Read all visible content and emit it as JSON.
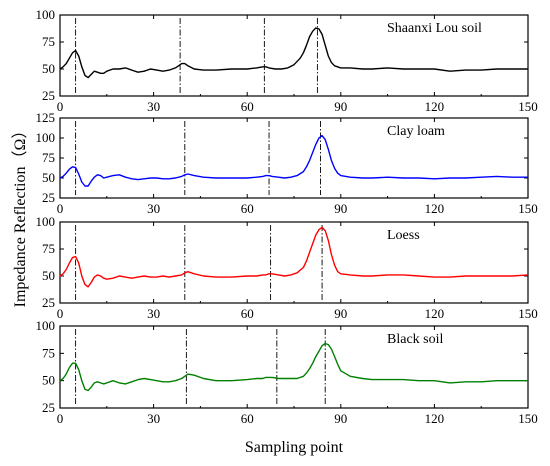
{
  "figure": {
    "ylabel": "Impedance Reflection（Ω）",
    "xlabel": "Sampling point"
  },
  "chart_data": [
    {
      "type": "line",
      "label": "Shaanxi Lou soil",
      "color": "#000000",
      "xlim": [
        0,
        150
      ],
      "ylim": [
        25,
        100
      ],
      "xticks": [
        "0",
        "30",
        "60",
        "90",
        "120",
        "150"
      ],
      "yticks": [
        "25",
        "50",
        "75",
        "100"
      ],
      "markers": [
        5,
        38.5,
        65.5,
        82.5
      ],
      "x": [
        0,
        1,
        2,
        3,
        4,
        5,
        6,
        7,
        8,
        9,
        10,
        11,
        12,
        13,
        14,
        15,
        17,
        19,
        21,
        23,
        25,
        27,
        29,
        31,
        33,
        35,
        37,
        38,
        39,
        40,
        41,
        43,
        46,
        50,
        55,
        60,
        63,
        65,
        66,
        67,
        69,
        71,
        73,
        75,
        77,
        78,
        79,
        80,
        81,
        82,
        83,
        84,
        85,
        86,
        87,
        88,
        90,
        93,
        97,
        100,
        105,
        110,
        115,
        120,
        125,
        130,
        135,
        140,
        145,
        150
      ],
      "y": [
        50,
        52,
        55,
        60,
        65,
        67,
        62,
        52,
        44,
        42,
        45,
        48,
        47,
        46,
        46,
        48,
        50,
        50,
        51,
        49,
        47,
        48,
        50,
        49,
        48,
        49,
        51,
        53,
        55,
        55,
        53,
        50,
        49,
        49,
        50,
        50,
        51,
        52,
        52,
        51,
        50,
        50,
        51,
        54,
        60,
        65,
        72,
        80,
        85,
        88,
        87,
        82,
        72,
        62,
        56,
        53,
        51,
        51,
        50,
        50,
        51,
        50,
        50,
        50,
        48,
        49,
        49,
        50,
        50,
        50
      ]
    },
    {
      "type": "line",
      "label": "Clay loam",
      "color": "#0000ff",
      "xlim": [
        0,
        150
      ],
      "ylim": [
        25,
        125
      ],
      "xticks": [
        "0",
        "30",
        "60",
        "90",
        "120",
        "150"
      ],
      "yticks": [
        "25",
        "50",
        "75",
        "100",
        "125"
      ],
      "markers": [
        5,
        40,
        67,
        83.5
      ],
      "x": [
        0,
        1,
        2,
        3,
        4,
        5,
        6,
        7,
        8,
        9,
        10,
        11,
        12,
        13,
        14,
        15,
        17,
        19,
        21,
        23,
        25,
        27,
        29,
        31,
        33,
        35,
        37,
        39,
        40,
        41,
        43,
        46,
        50,
        55,
        60,
        63,
        65,
        66,
        67,
        68,
        70,
        72,
        74,
        76,
        78,
        79,
        80,
        81,
        82,
        83,
        84,
        85,
        86,
        87,
        88,
        89,
        90,
        93,
        97,
        100,
        105,
        110,
        115,
        120,
        125,
        130,
        135,
        140,
        145,
        150
      ],
      "y": [
        50,
        52,
        56,
        61,
        64,
        63,
        55,
        45,
        40,
        40,
        46,
        51,
        54,
        53,
        50,
        51,
        53,
        54,
        51,
        49,
        48,
        49,
        50,
        50,
        49,
        49,
        50,
        52,
        54,
        55,
        53,
        51,
        50,
        50,
        50,
        51,
        52,
        53,
        53,
        52,
        51,
        50,
        51,
        53,
        58,
        64,
        72,
        82,
        92,
        100,
        103,
        98,
        86,
        72,
        62,
        56,
        53,
        51,
        50,
        50,
        51,
        50,
        50,
        49,
        50,
        50,
        51,
        52,
        51,
        51
      ]
    },
    {
      "type": "line",
      "label": "Loess",
      "color": "#ff0000",
      "xlim": [
        0,
        150
      ],
      "ylim": [
        25,
        100
      ],
      "xticks": [
        "0",
        "30",
        "60",
        "90",
        "120",
        "150"
      ],
      "yticks": [
        "25",
        "50",
        "75",
        "100"
      ],
      "markers": [
        5,
        40,
        67.5,
        84
      ],
      "x": [
        0,
        1,
        2,
        3,
        4,
        5,
        6,
        7,
        8,
        9,
        10,
        11,
        12,
        13,
        14,
        15,
        17,
        19,
        21,
        23,
        25,
        27,
        29,
        31,
        33,
        35,
        37,
        39,
        40,
        41,
        43,
        46,
        50,
        55,
        60,
        63,
        65,
        66,
        67,
        68,
        70,
        72,
        74,
        76,
        78,
        79,
        80,
        81,
        82,
        83,
        84,
        85,
        86,
        87,
        88,
        89,
        90,
        93,
        97,
        100,
        105,
        110,
        115,
        120,
        125,
        130,
        135,
        140,
        145,
        150
      ],
      "y": [
        50,
        52,
        56,
        62,
        67,
        68,
        62,
        50,
        42,
        40,
        44,
        49,
        51,
        50,
        48,
        47,
        48,
        50,
        49,
        48,
        49,
        50,
        49,
        49,
        50,
        49,
        50,
        51,
        53,
        54,
        52,
        50,
        49,
        49,
        50,
        50,
        51,
        51,
        52,
        52,
        51,
        50,
        51,
        53,
        58,
        64,
        72,
        80,
        88,
        93,
        95,
        92,
        83,
        70,
        60,
        54,
        52,
        51,
        50,
        50,
        51,
        51,
        50,
        49,
        49,
        50,
        50,
        50,
        50,
        51
      ]
    },
    {
      "type": "line",
      "label": "Black soil",
      "color": "#008000",
      "xlim": [
        0,
        150
      ],
      "ylim": [
        25,
        100
      ],
      "xticks": [
        "0",
        "30",
        "60",
        "90",
        "120",
        "150"
      ],
      "yticks": [
        "25",
        "50",
        "75",
        "100"
      ],
      "markers": [
        5,
        40.5,
        69.5,
        85
      ],
      "x": [
        0,
        1,
        2,
        3,
        4,
        5,
        6,
        7,
        8,
        9,
        10,
        11,
        12,
        13,
        14,
        15,
        17,
        19,
        21,
        23,
        25,
        27,
        29,
        31,
        33,
        35,
        37,
        39,
        40,
        41,
        43,
        46,
        50,
        55,
        60,
        63,
        65,
        66,
        67,
        68,
        70,
        72,
        74,
        76,
        78,
        79,
        80,
        81,
        82,
        83,
        84,
        85,
        86,
        87,
        88,
        89,
        90,
        93,
        97,
        100,
        105,
        110,
        115,
        120,
        125,
        130,
        135,
        140,
        145,
        150
      ],
      "y": [
        50,
        52,
        56,
        62,
        66,
        66,
        60,
        50,
        42,
        41,
        44,
        48,
        49,
        48,
        47,
        48,
        50,
        48,
        47,
        49,
        51,
        52,
        51,
        50,
        49,
        49,
        50,
        52,
        54,
        56,
        55,
        52,
        50,
        50,
        51,
        52,
        52,
        53,
        53,
        53,
        52,
        52,
        52,
        52,
        54,
        57,
        61,
        66,
        72,
        77,
        82,
        84,
        83,
        79,
        72,
        65,
        59,
        54,
        52,
        51,
        51,
        51,
        50,
        50,
        48,
        49,
        49,
        50,
        50,
        50
      ]
    }
  ]
}
